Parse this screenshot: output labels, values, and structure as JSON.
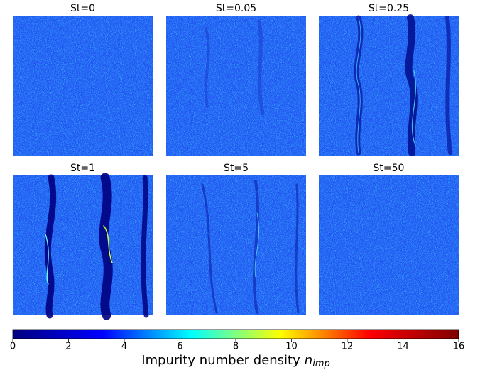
{
  "chart_data": {
    "type": "heatmap-grid",
    "panels": [
      {
        "title": "St=0"
      },
      {
        "title": "St=0.05"
      },
      {
        "title": "St=0.25"
      },
      {
        "title": "St=1"
      },
      {
        "title": "St=5"
      },
      {
        "title": "St=50"
      }
    ],
    "colorbar": {
      "label": "Impurity number density",
      "symbol": "n",
      "subscript": "imp",
      "lim": [
        0,
        16
      ],
      "ticks": [
        0,
        2,
        4,
        6,
        8,
        10,
        12,
        14,
        16
      ],
      "colormap": [
        "#00007f",
        "#0000ff",
        "#00ffff",
        "#ffff00",
        "#ff0000",
        "#7f0000"
      ]
    }
  }
}
